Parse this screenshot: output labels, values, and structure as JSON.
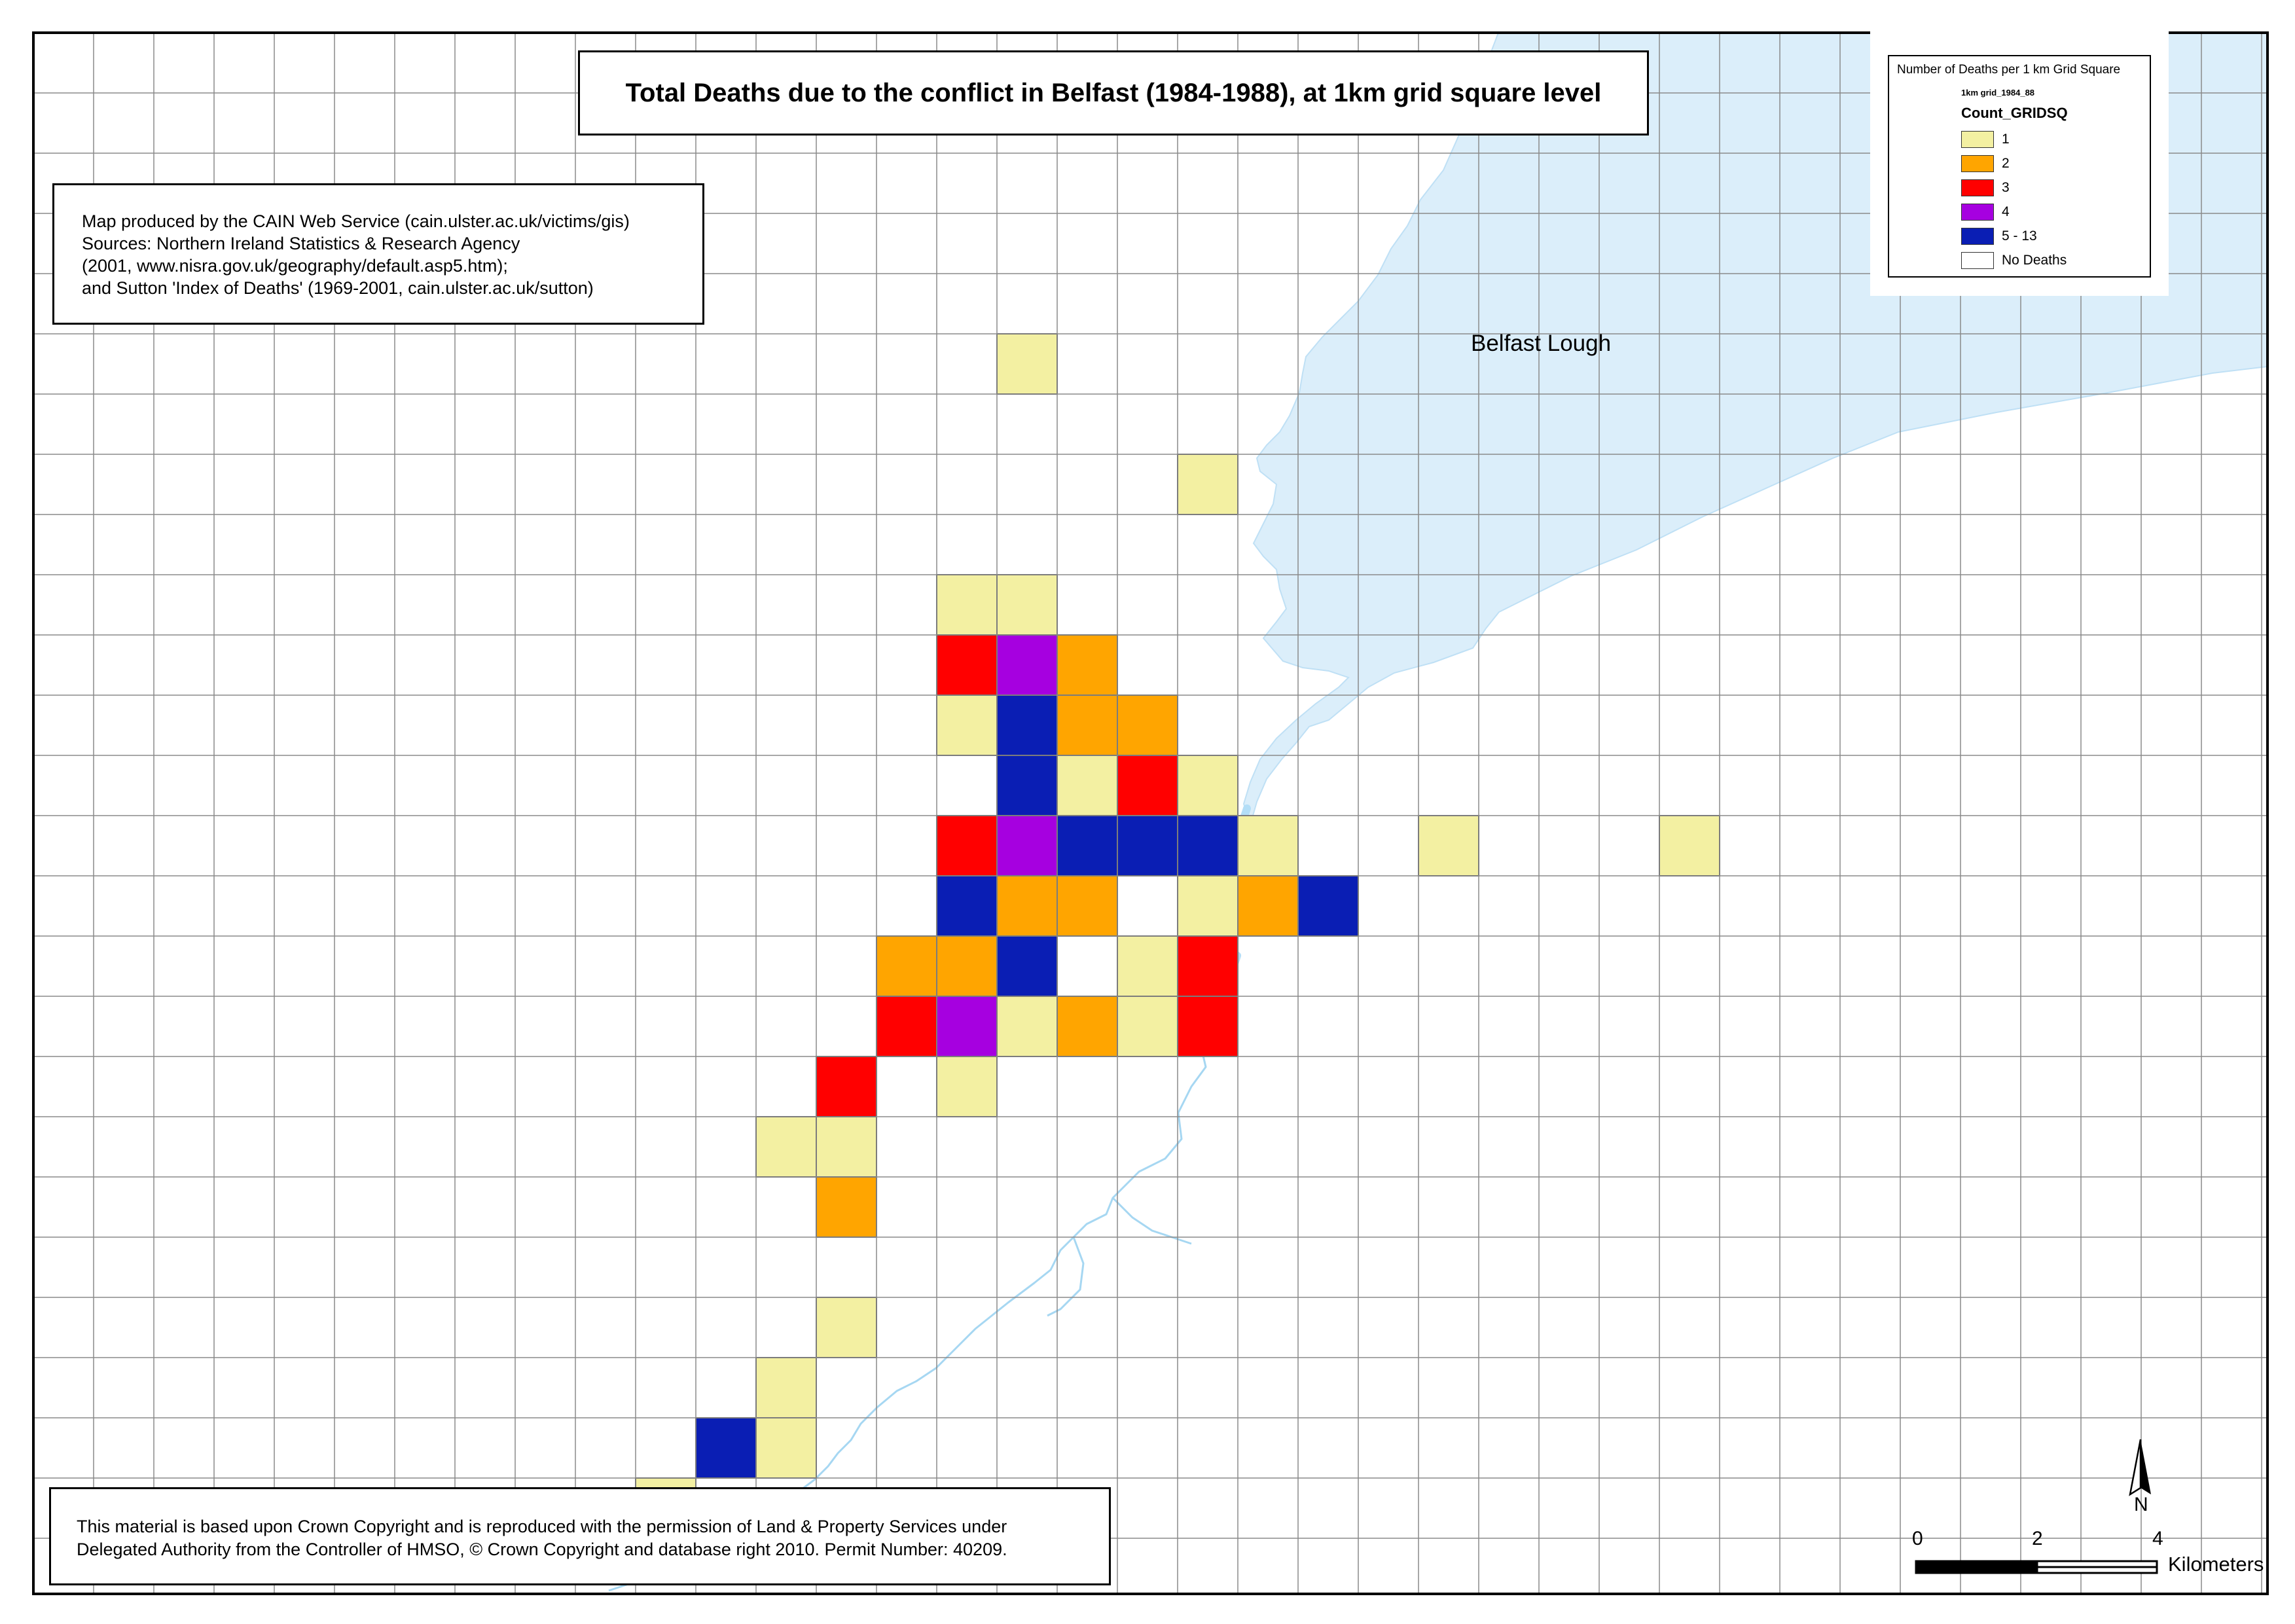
{
  "title": "Total Deaths due to the conflict in Belfast (1984-1988), at 1km grid square level",
  "credits": [
    "Map produced by the CAIN Web Service (cain.ulster.ac.uk/victims/gis)",
    "Sources: Northern Ireland Statistics & Research Agency",
    "(2001, www.nisra.gov.uk/geography/default.asp5.htm);",
    "and Sutton 'Index of Deaths' (1969-2001, cain.ulster.ac.uk/sutton)"
  ],
  "copyright": [
    "This material is based upon Crown Copyright and is reproduced with the permission of Land & Property Services under",
    "Delegated Authority from the Controller of HMSO, © Crown Copyright and database right 2010. Permit Number: 40209."
  ],
  "legend": {
    "heading": "Number of Deaths per 1 km Grid Square",
    "layer": "1km grid_1984_88",
    "field": "Count_GRIDSQ",
    "classes": [
      {
        "label": "1",
        "color": "#f3f0a2"
      },
      {
        "label": "2",
        "color": "#ffa500"
      },
      {
        "label": "3",
        "color": "#ff0000"
      },
      {
        "label": "4",
        "color": "#a600e0"
      },
      {
        "label": "5 - 13",
        "color": "#0a1eb4"
      },
      {
        "label": "No Deaths",
        "color": "#ffffff"
      }
    ]
  },
  "water_label": "Belfast Lough",
  "colors": {
    "water": "#dbeefa",
    "river": "#9fd3f0",
    "grid_line": "#8a8a8a"
  },
  "north_arrow": {
    "letter": "N",
    "icon": "north-arrow-icon"
  },
  "scale_bar": {
    "labels": [
      "0",
      "2",
      "4"
    ],
    "units": "Kilometers"
  },
  "map_cells": [
    {
      "col": 16,
      "row": 5,
      "class": 0
    },
    {
      "col": 19,
      "row": 7,
      "class": 0
    },
    {
      "col": 15,
      "row": 9,
      "class": 0
    },
    {
      "col": 16,
      "row": 9,
      "class": 0
    },
    {
      "col": 15,
      "row": 10,
      "class": 2
    },
    {
      "col": 16,
      "row": 10,
      "class": 3
    },
    {
      "col": 17,
      "row": 10,
      "class": 1
    },
    {
      "col": 15,
      "row": 11,
      "class": 0
    },
    {
      "col": 16,
      "row": 11,
      "class": 4
    },
    {
      "col": 17,
      "row": 11,
      "class": 1
    },
    {
      "col": 18,
      "row": 11,
      "class": 1
    },
    {
      "col": 16,
      "row": 12,
      "class": 4
    },
    {
      "col": 17,
      "row": 12,
      "class": 0
    },
    {
      "col": 18,
      "row": 12,
      "class": 2
    },
    {
      "col": 19,
      "row": 12,
      "class": 0
    },
    {
      "col": 15,
      "row": 13,
      "class": 2
    },
    {
      "col": 16,
      "row": 13,
      "class": 3
    },
    {
      "col": 17,
      "row": 13,
      "class": 4
    },
    {
      "col": 18,
      "row": 13,
      "class": 4
    },
    {
      "col": 19,
      "row": 13,
      "class": 4
    },
    {
      "col": 20,
      "row": 13,
      "class": 0
    },
    {
      "col": 23,
      "row": 13,
      "class": 0
    },
    {
      "col": 27,
      "row": 13,
      "class": 0
    },
    {
      "col": 15,
      "row": 14,
      "class": 4
    },
    {
      "col": 16,
      "row": 14,
      "class": 1
    },
    {
      "col": 17,
      "row": 14,
      "class": 1
    },
    {
      "col": 19,
      "row": 14,
      "class": 0
    },
    {
      "col": 20,
      "row": 14,
      "class": 1
    },
    {
      "col": 21,
      "row": 14,
      "class": 4
    },
    {
      "col": 14,
      "row": 15,
      "class": 1
    },
    {
      "col": 15,
      "row": 15,
      "class": 1
    },
    {
      "col": 16,
      "row": 15,
      "class": 4
    },
    {
      "col": 18,
      "row": 15,
      "class": 0
    },
    {
      "col": 19,
      "row": 15,
      "class": 2
    },
    {
      "col": 14,
      "row": 16,
      "class": 2
    },
    {
      "col": 15,
      "row": 16,
      "class": 3
    },
    {
      "col": 16,
      "row": 16,
      "class": 0
    },
    {
      "col": 17,
      "row": 16,
      "class": 1
    },
    {
      "col": 18,
      "row": 16,
      "class": 0
    },
    {
      "col": 19,
      "row": 16,
      "class": 2
    },
    {
      "col": 13,
      "row": 17,
      "class": 2
    },
    {
      "col": 15,
      "row": 17,
      "class": 0
    },
    {
      "col": 12,
      "row": 18,
      "class": 0
    },
    {
      "col": 13,
      "row": 18,
      "class": 0
    },
    {
      "col": 13,
      "row": 19,
      "class": 1
    },
    {
      "col": 13,
      "row": 21,
      "class": 0
    },
    {
      "col": 12,
      "row": 22,
      "class": 0
    },
    {
      "col": 11,
      "row": 23,
      "class": 4
    },
    {
      "col": 12,
      "row": 23,
      "class": 0
    },
    {
      "col": 10,
      "row": 24,
      "class": 0
    }
  ]
}
